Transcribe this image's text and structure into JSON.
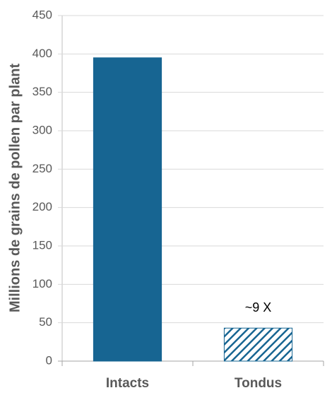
{
  "chart_data": {
    "type": "bar",
    "y_label": "Millions de grains de pollen par plant",
    "categories": [
      "Intacts",
      "Tondus"
    ],
    "values": [
      395,
      43
    ],
    "color": "#176592",
    "hatch": [
      false,
      true
    ],
    "annotation": "~9 X",
    "ylim": [
      0,
      450
    ],
    "yticks": [
      0,
      50,
      100,
      150,
      200,
      250,
      300,
      350,
      400,
      450
    ],
    "grid": true
  }
}
